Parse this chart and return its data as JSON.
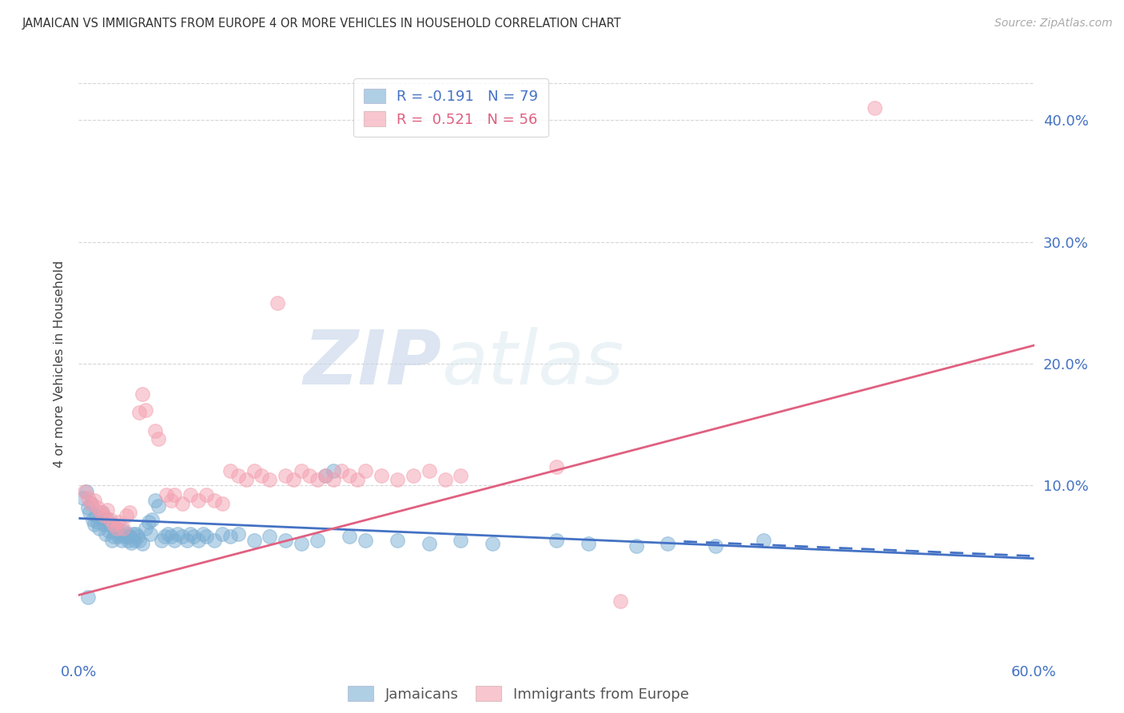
{
  "title": "JAMAICAN VS IMMIGRANTS FROM EUROPE 4 OR MORE VEHICLES IN HOUSEHOLD CORRELATION CHART",
  "source": "Source: ZipAtlas.com",
  "ylabel": "4 or more Vehicles in Household",
  "ytick_labels": [
    "10.0%",
    "20.0%",
    "30.0%",
    "40.0%"
  ],
  "ytick_values": [
    0.1,
    0.2,
    0.3,
    0.4
  ],
  "xlim": [
    0.0,
    0.6
  ],
  "ylim": [
    -0.04,
    0.44
  ],
  "watermark_zip": "ZIP",
  "watermark_atlas": "atlas",
  "blue_color": "#7bafd4",
  "pink_color": "#f4a0b0",
  "blue_scatter": [
    [
      0.003,
      0.09
    ],
    [
      0.005,
      0.095
    ],
    [
      0.006,
      0.082
    ],
    [
      0.007,
      0.078
    ],
    [
      0.008,
      0.085
    ],
    [
      0.009,
      0.072
    ],
    [
      0.01,
      0.068
    ],
    [
      0.011,
      0.075
    ],
    [
      0.012,
      0.07
    ],
    [
      0.013,
      0.065
    ],
    [
      0.014,
      0.073
    ],
    [
      0.015,
      0.078
    ],
    [
      0.016,
      0.068
    ],
    [
      0.017,
      0.06
    ],
    [
      0.018,
      0.072
    ],
    [
      0.019,
      0.063
    ],
    [
      0.02,
      0.068
    ],
    [
      0.021,
      0.055
    ],
    [
      0.022,
      0.058
    ],
    [
      0.023,
      0.062
    ],
    [
      0.024,
      0.065
    ],
    [
      0.025,
      0.058
    ],
    [
      0.026,
      0.06
    ],
    [
      0.027,
      0.055
    ],
    [
      0.028,
      0.063
    ],
    [
      0.029,
      0.058
    ],
    [
      0.03,
      0.06
    ],
    [
      0.031,
      0.055
    ],
    [
      0.032,
      0.058
    ],
    [
      0.033,
      0.053
    ],
    [
      0.034,
      0.06
    ],
    [
      0.035,
      0.055
    ],
    [
      0.036,
      0.06
    ],
    [
      0.037,
      0.058
    ],
    [
      0.038,
      0.055
    ],
    [
      0.04,
      0.052
    ],
    [
      0.042,
      0.065
    ],
    [
      0.044,
      0.07
    ],
    [
      0.045,
      0.06
    ],
    [
      0.046,
      0.072
    ],
    [
      0.048,
      0.088
    ],
    [
      0.05,
      0.083
    ],
    [
      0.052,
      0.055
    ],
    [
      0.054,
      0.058
    ],
    [
      0.056,
      0.06
    ],
    [
      0.058,
      0.058
    ],
    [
      0.06,
      0.055
    ],
    [
      0.062,
      0.06
    ],
    [
      0.065,
      0.058
    ],
    [
      0.068,
      0.055
    ],
    [
      0.07,
      0.06
    ],
    [
      0.072,
      0.058
    ],
    [
      0.075,
      0.055
    ],
    [
      0.078,
      0.06
    ],
    [
      0.08,
      0.058
    ],
    [
      0.085,
      0.055
    ],
    [
      0.09,
      0.06
    ],
    [
      0.095,
      0.058
    ],
    [
      0.1,
      0.06
    ],
    [
      0.11,
      0.055
    ],
    [
      0.12,
      0.058
    ],
    [
      0.13,
      0.055
    ],
    [
      0.14,
      0.052
    ],
    [
      0.15,
      0.055
    ],
    [
      0.155,
      0.108
    ],
    [
      0.16,
      0.112
    ],
    [
      0.17,
      0.058
    ],
    [
      0.18,
      0.055
    ],
    [
      0.2,
      0.055
    ],
    [
      0.22,
      0.052
    ],
    [
      0.24,
      0.055
    ],
    [
      0.26,
      0.052
    ],
    [
      0.3,
      0.055
    ],
    [
      0.32,
      0.052
    ],
    [
      0.35,
      0.05
    ],
    [
      0.37,
      0.052
    ],
    [
      0.4,
      0.05
    ],
    [
      0.43,
      0.055
    ],
    [
      0.006,
      0.008
    ]
  ],
  "pink_scatter": [
    [
      0.004,
      0.095
    ],
    [
      0.006,
      0.09
    ],
    [
      0.008,
      0.085
    ],
    [
      0.01,
      0.088
    ],
    [
      0.012,
      0.082
    ],
    [
      0.014,
      0.078
    ],
    [
      0.016,
      0.075
    ],
    [
      0.018,
      0.08
    ],
    [
      0.02,
      0.072
    ],
    [
      0.022,
      0.068
    ],
    [
      0.024,
      0.065
    ],
    [
      0.025,
      0.07
    ],
    [
      0.028,
      0.065
    ],
    [
      0.03,
      0.075
    ],
    [
      0.032,
      0.078
    ],
    [
      0.038,
      0.16
    ],
    [
      0.04,
      0.175
    ],
    [
      0.042,
      0.162
    ],
    [
      0.048,
      0.145
    ],
    [
      0.05,
      0.138
    ],
    [
      0.055,
      0.092
    ],
    [
      0.058,
      0.088
    ],
    [
      0.06,
      0.092
    ],
    [
      0.065,
      0.085
    ],
    [
      0.07,
      0.092
    ],
    [
      0.075,
      0.088
    ],
    [
      0.08,
      0.092
    ],
    [
      0.085,
      0.088
    ],
    [
      0.09,
      0.085
    ],
    [
      0.095,
      0.112
    ],
    [
      0.1,
      0.108
    ],
    [
      0.105,
      0.105
    ],
    [
      0.11,
      0.112
    ],
    [
      0.115,
      0.108
    ],
    [
      0.12,
      0.105
    ],
    [
      0.125,
      0.25
    ],
    [
      0.13,
      0.108
    ],
    [
      0.135,
      0.105
    ],
    [
      0.14,
      0.112
    ],
    [
      0.145,
      0.108
    ],
    [
      0.15,
      0.105
    ],
    [
      0.155,
      0.108
    ],
    [
      0.16,
      0.105
    ],
    [
      0.165,
      0.112
    ],
    [
      0.17,
      0.108
    ],
    [
      0.175,
      0.105
    ],
    [
      0.18,
      0.112
    ],
    [
      0.19,
      0.108
    ],
    [
      0.2,
      0.105
    ],
    [
      0.21,
      0.108
    ],
    [
      0.22,
      0.112
    ],
    [
      0.23,
      0.105
    ],
    [
      0.24,
      0.108
    ],
    [
      0.3,
      0.115
    ],
    [
      0.34,
      0.005
    ],
    [
      0.5,
      0.41
    ]
  ],
  "blue_line": {
    "x0": 0.0,
    "y0": 0.073,
    "x1": 0.6,
    "y1": 0.04
  },
  "blue_dash_line": {
    "x0": 0.38,
    "y0": 0.054,
    "x1": 0.6,
    "y1": 0.042
  },
  "pink_line": {
    "x0": 0.0,
    "y0": 0.01,
    "x1": 0.6,
    "y1": 0.215
  },
  "grid_color": "#cccccc",
  "grid_alpha": 0.8,
  "background_color": "#ffffff"
}
